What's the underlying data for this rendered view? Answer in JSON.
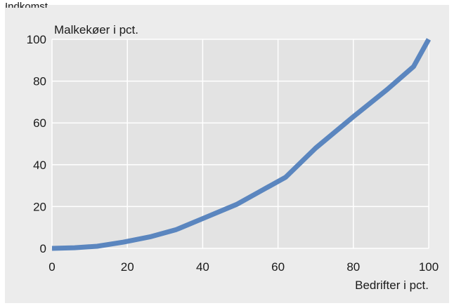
{
  "header_fragment": "Indkomst",
  "chart_data": {
    "type": "line",
    "title": "",
    "xlabel": "Bedrifter i pct.",
    "ylabel": "Malkekøer i pct.",
    "xlim": [
      0,
      100
    ],
    "ylim": [
      0,
      100
    ],
    "x_ticks": [
      "0",
      "20",
      "40",
      "60",
      "80",
      "100"
    ],
    "y_ticks": [
      "0",
      "20",
      "40",
      "60",
      "80",
      "100"
    ],
    "grid": true,
    "series": [
      {
        "color": "#5b86bf",
        "x": [
          0,
          6,
          12,
          19,
          26,
          33,
          41,
          49,
          55,
          62,
          70,
          80,
          89,
          96,
          100
        ],
        "y": [
          0,
          0.3,
          1,
          3,
          5.5,
          9,
          15,
          21,
          27,
          34,
          48,
          63,
          76,
          87,
          100
        ]
      }
    ]
  },
  "colors": {
    "plot_background": "#e3e3e3",
    "figure_background": "#ececec",
    "grid": "#ffffff",
    "line": "#5b86bf"
  }
}
